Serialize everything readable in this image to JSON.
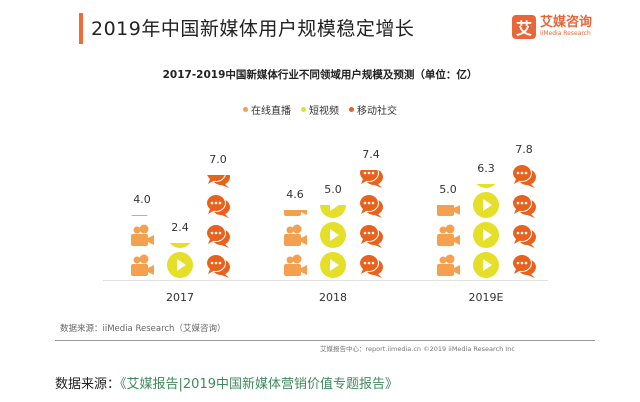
{
  "header": {
    "title": "2019年中国新媒体用户规模稳定增长",
    "accent_color": "#F06A35"
  },
  "logo": {
    "mark": "艾",
    "name_cn": "艾媒咨询",
    "name_en": "iiMedia Research"
  },
  "chart_data": {
    "type": "bar",
    "style": "pictogram",
    "title": "2017-2019中国新媒体行业不同领域用户规模及预测（单位：亿）",
    "categories": [
      "2017",
      "2018",
      "2019E"
    ],
    "series": [
      {
        "name": "在线直播",
        "values": [
          4.0,
          4.6,
          5.0
        ],
        "color": "#F5A04F",
        "icon": "video-camera-icon"
      },
      {
        "name": "短视频",
        "values": [
          2.4,
          5.0,
          6.3
        ],
        "color": "#E6DF2A",
        "icon": "play-icon"
      },
      {
        "name": "移动社交",
        "values": [
          7.0,
          7.4,
          7.8
        ],
        "color": "#E8621E",
        "icon": "chat-bubbles-icon"
      }
    ],
    "legend_position": "top-center",
    "grid": false
  },
  "source_note": "数据来源：iiMedia Research（艾媒咨询）",
  "footer_note": "艾媒报告中心：report.iimedia.cn  ©2019  iiMedia Research Inc",
  "bottom": {
    "label": "数据来源：",
    "link": "《艾媒报告|2019中国新媒体营销价值专题报告》"
  }
}
